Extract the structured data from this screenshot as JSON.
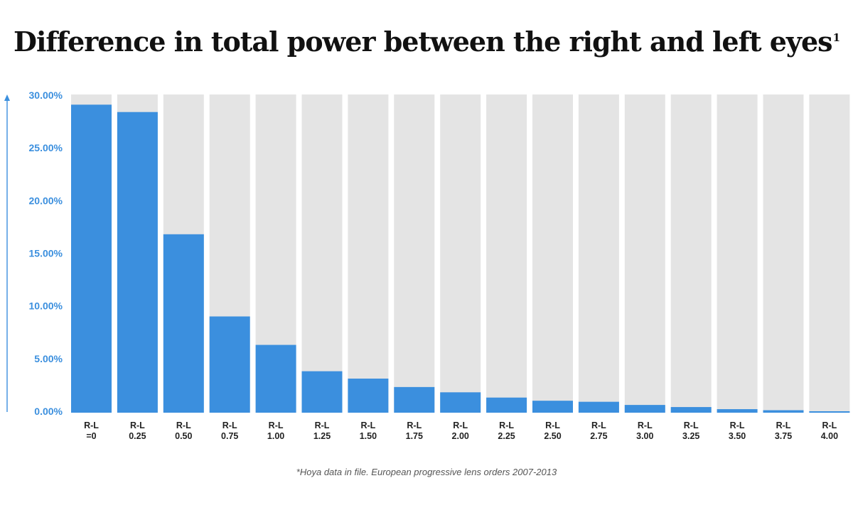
{
  "title": "Difference in total power between the right and left eyes",
  "title_superscript": "1",
  "footnote": "*Hoya data in file. European progressive lens orders 2007-2013",
  "colors": {
    "bar": "#3b8fde",
    "track": "#e4e4e4",
    "axis": "#3b8fde",
    "ytick": "#3b8fde"
  },
  "chart_data": {
    "type": "bar",
    "categories": [
      [
        "R-L",
        "=0"
      ],
      [
        "R-L",
        "0.25"
      ],
      [
        "R-L",
        "0.50"
      ],
      [
        "R-L",
        "0.75"
      ],
      [
        "R-L",
        "1.00"
      ],
      [
        "R-L",
        "1.25"
      ],
      [
        "R-L",
        "1.50"
      ],
      [
        "R-L",
        "1.75"
      ],
      [
        "R-L",
        "2.00"
      ],
      [
        "R-L",
        "2.25"
      ],
      [
        "R-L",
        "2.50"
      ],
      [
        "R-L",
        "2.75"
      ],
      [
        "R-L",
        "3.00"
      ],
      [
        "R-L",
        "3.25"
      ],
      [
        "R-L",
        "3.50"
      ],
      [
        "R-L",
        "3.75"
      ],
      [
        "R-L",
        "4.00"
      ]
    ],
    "values": [
      29.1,
      28.4,
      16.8,
      9.0,
      6.3,
      3.8,
      3.1,
      2.3,
      1.8,
      1.3,
      1.0,
      0.9,
      0.6,
      0.4,
      0.2,
      0.1,
      -0.1
    ],
    "ylim": [
      0,
      30
    ],
    "yticks": [
      "0.00%",
      "5.00%",
      "10.00%",
      "15.00%",
      "20.00%",
      "25.00%",
      "30.00%"
    ],
    "ytick_values": [
      0,
      5,
      10,
      15,
      20,
      25,
      30
    ],
    "title": "Difference in total power between the right and left eyes",
    "xlabel": "",
    "ylabel": "",
    "legend": "none",
    "grid": false
  }
}
